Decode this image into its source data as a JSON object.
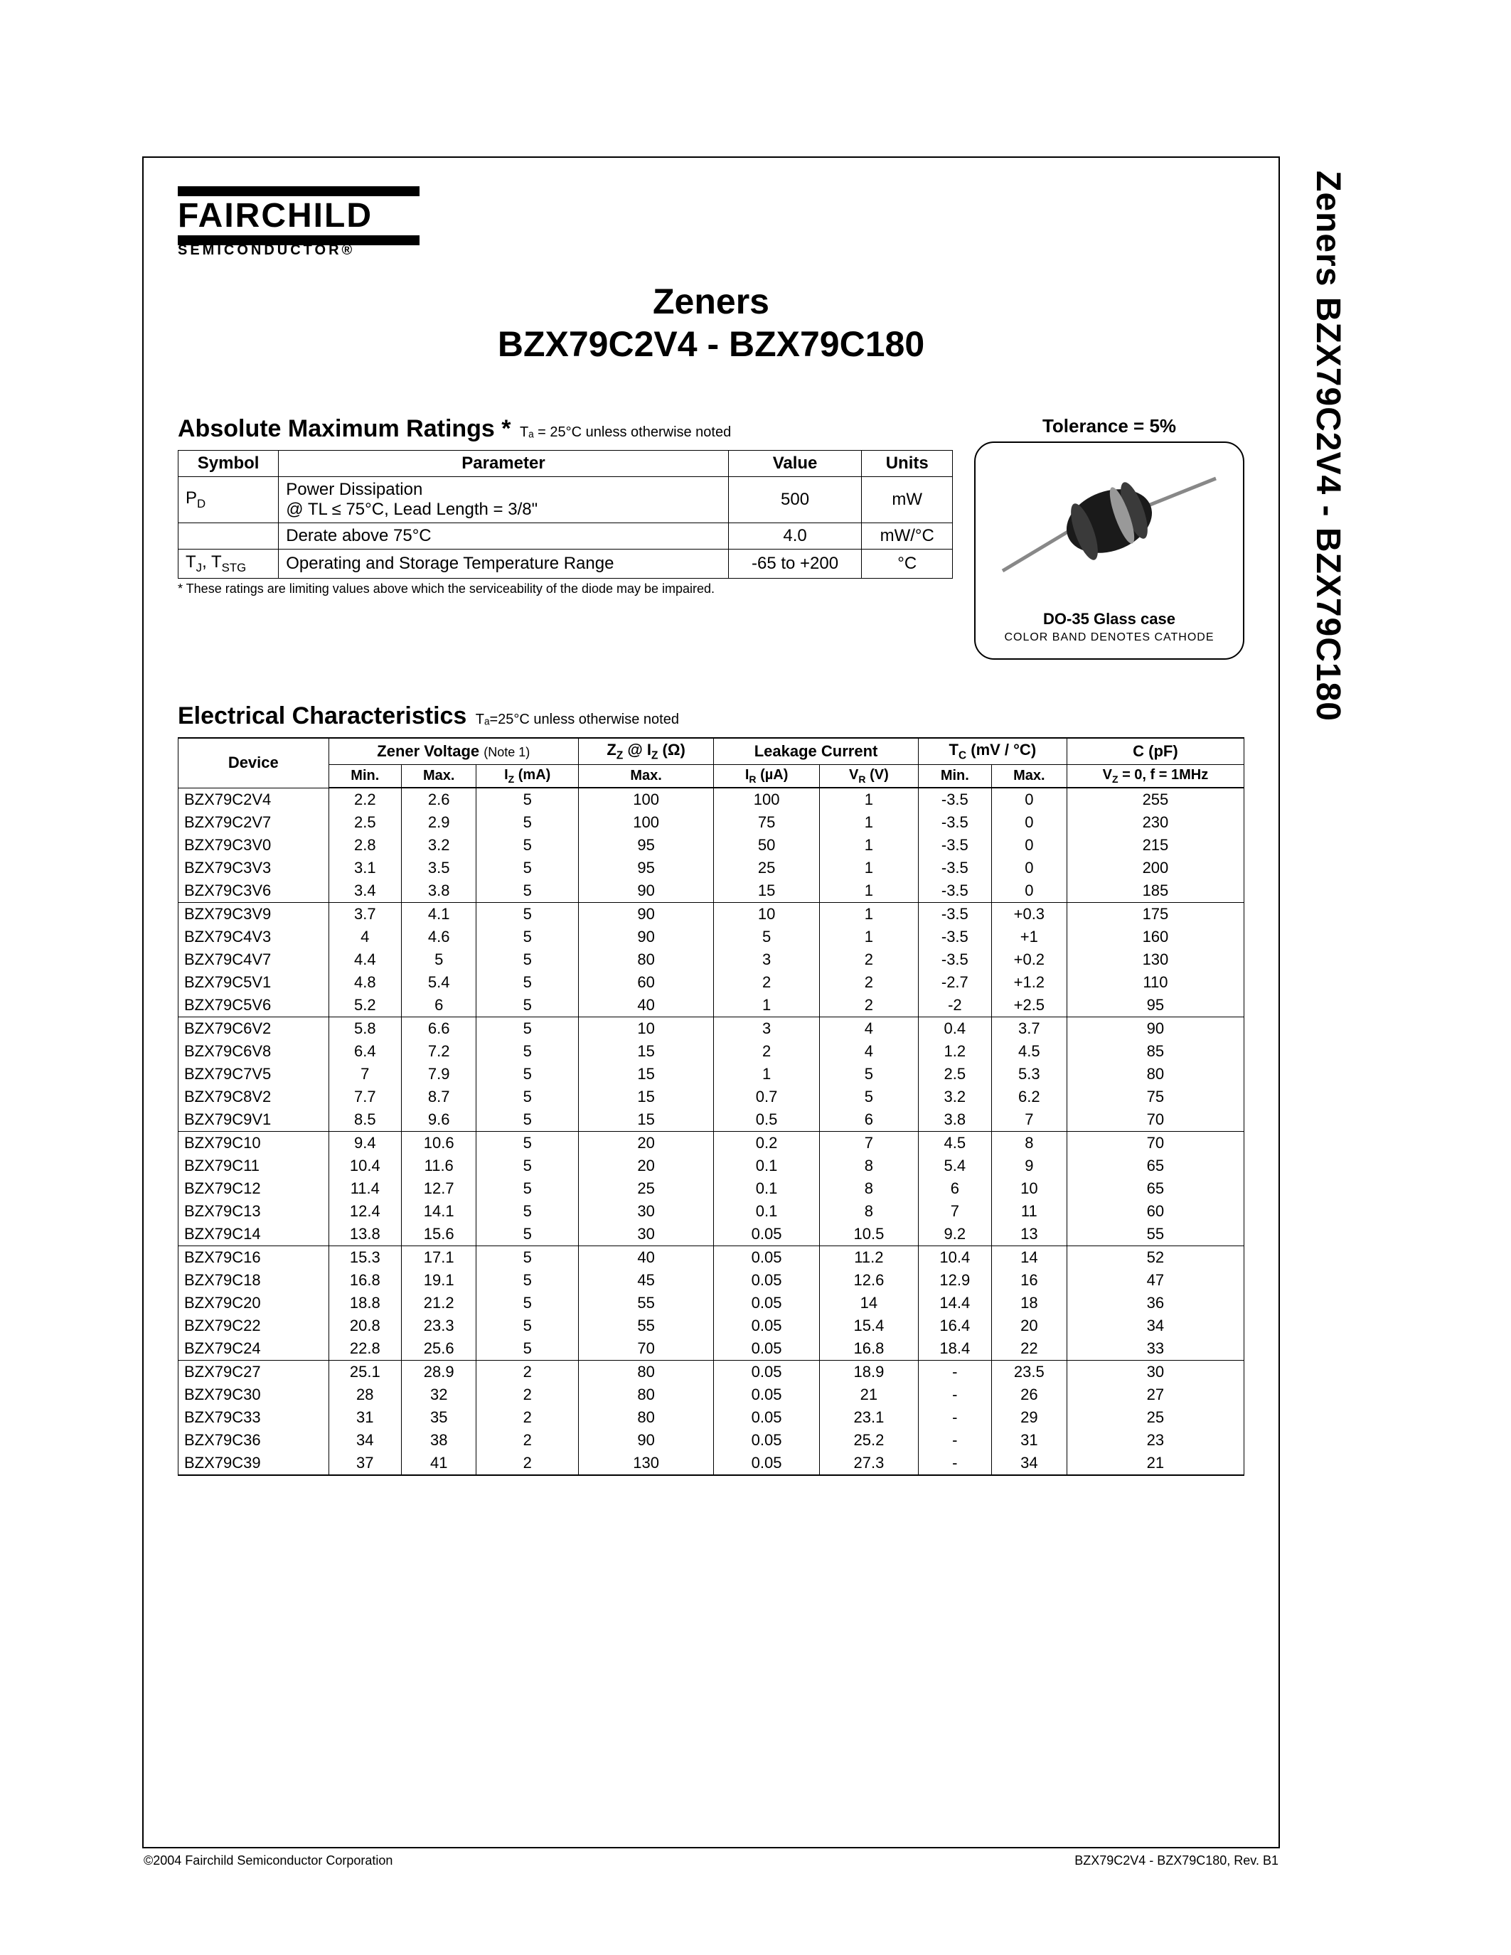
{
  "side_title": "Zeners BZX79C2V4 - BZX79C180",
  "logo": {
    "brand": "FAIRCHILD",
    "sub": "SEMICONDUCTOR®"
  },
  "main_title_line1": "Zeners",
  "main_title_line2": "BZX79C2V4 - BZX79C180",
  "ratings": {
    "heading": "Absolute Maximum Ratings *",
    "note": "Tₐ = 25°C unless otherwise noted",
    "columns": [
      "Symbol",
      "Parameter",
      "Value",
      "Units"
    ],
    "rows": [
      {
        "symbol": "P_D",
        "param": "Power Dissipation\n@ TL ≤ 75°C, Lead Length = 3/8\"",
        "value": "500",
        "units": "mW"
      },
      {
        "symbol": "",
        "param": "Derate above 75°C",
        "value": "4.0",
        "units": "mW/°C"
      },
      {
        "symbol": "T_J, T_STG",
        "param": "Operating and Storage Temperature Range",
        "value": "-65 to +200",
        "units": "°C"
      }
    ],
    "footnote": "* These ratings are limiting values above which the serviceability of the diode may be impaired."
  },
  "tolerance": "Tolerance = 5%",
  "package": {
    "label": "DO-35 Glass case",
    "sub": "COLOR BAND DENOTES CATHODE"
  },
  "elec": {
    "heading": "Electrical Characteristics",
    "note": "Tₐ=25°C unless otherwise noted",
    "top_headers": {
      "device": "Device",
      "zener": "Zener Voltage (Note 1)",
      "zz": "Z_Z @ I_Z   (Ω)",
      "leak": "Leakage Current",
      "tc": "T_C (mV / °C)",
      "c": "C (pF)"
    },
    "sub_headers": [
      "Min.",
      "Max.",
      "I_Z (mA)",
      "Max.",
      "I_R (µA)",
      "V_R (V)",
      "Min.",
      "Max.",
      "V_Z = 0, f = 1MHz"
    ],
    "groups": [
      [
        [
          "BZX79C2V4",
          "2.2",
          "2.6",
          "5",
          "100",
          "100",
          "1",
          "-3.5",
          "0",
          "255"
        ],
        [
          "BZX79C2V7",
          "2.5",
          "2.9",
          "5",
          "100",
          "75",
          "1",
          "-3.5",
          "0",
          "230"
        ],
        [
          "BZX79C3V0",
          "2.8",
          "3.2",
          "5",
          "95",
          "50",
          "1",
          "-3.5",
          "0",
          "215"
        ],
        [
          "BZX79C3V3",
          "3.1",
          "3.5",
          "5",
          "95",
          "25",
          "1",
          "-3.5",
          "0",
          "200"
        ],
        [
          "BZX79C3V6",
          "3.4",
          "3.8",
          "5",
          "90",
          "15",
          "1",
          "-3.5",
          "0",
          "185"
        ]
      ],
      [
        [
          "BZX79C3V9",
          "3.7",
          "4.1",
          "5",
          "90",
          "10",
          "1",
          "-3.5",
          "+0.3",
          "175"
        ],
        [
          "BZX79C4V3",
          "4",
          "4.6",
          "5",
          "90",
          "5",
          "1",
          "-3.5",
          "+1",
          "160"
        ],
        [
          "BZX79C4V7",
          "4.4",
          "5",
          "5",
          "80",
          "3",
          "2",
          "-3.5",
          "+0.2",
          "130"
        ],
        [
          "BZX79C5V1",
          "4.8",
          "5.4",
          "5",
          "60",
          "2",
          "2",
          "-2.7",
          "+1.2",
          "110"
        ],
        [
          "BZX79C5V6",
          "5.2",
          "6",
          "5",
          "40",
          "1",
          "2",
          "-2",
          "+2.5",
          "95"
        ]
      ],
      [
        [
          "BZX79C6V2",
          "5.8",
          "6.6",
          "5",
          "10",
          "3",
          "4",
          "0.4",
          "3.7",
          "90"
        ],
        [
          "BZX79C6V8",
          "6.4",
          "7.2",
          "5",
          "15",
          "2",
          "4",
          "1.2",
          "4.5",
          "85"
        ],
        [
          "BZX79C7V5",
          "7",
          "7.9",
          "5",
          "15",
          "1",
          "5",
          "2.5",
          "5.3",
          "80"
        ],
        [
          "BZX79C8V2",
          "7.7",
          "8.7",
          "5",
          "15",
          "0.7",
          "5",
          "3.2",
          "6.2",
          "75"
        ],
        [
          "BZX79C9V1",
          "8.5",
          "9.6",
          "5",
          "15",
          "0.5",
          "6",
          "3.8",
          "7",
          "70"
        ]
      ],
      [
        [
          "BZX79C10",
          "9.4",
          "10.6",
          "5",
          "20",
          "0.2",
          "7",
          "4.5",
          "8",
          "70"
        ],
        [
          "BZX79C11",
          "10.4",
          "11.6",
          "5",
          "20",
          "0.1",
          "8",
          "5.4",
          "9",
          "65"
        ],
        [
          "BZX79C12",
          "11.4",
          "12.7",
          "5",
          "25",
          "0.1",
          "8",
          "6",
          "10",
          "65"
        ],
        [
          "BZX79C13",
          "12.4",
          "14.1",
          "5",
          "30",
          "0.1",
          "8",
          "7",
          "11",
          "60"
        ],
        [
          "BZX79C14",
          "13.8",
          "15.6",
          "5",
          "30",
          "0.05",
          "10.5",
          "9.2",
          "13",
          "55"
        ]
      ],
      [
        [
          "BZX79C16",
          "15.3",
          "17.1",
          "5",
          "40",
          "0.05",
          "11.2",
          "10.4",
          "14",
          "52"
        ],
        [
          "BZX79C18",
          "16.8",
          "19.1",
          "5",
          "45",
          "0.05",
          "12.6",
          "12.9",
          "16",
          "47"
        ],
        [
          "BZX79C20",
          "18.8",
          "21.2",
          "5",
          "55",
          "0.05",
          "14",
          "14.4",
          "18",
          "36"
        ],
        [
          "BZX79C22",
          "20.8",
          "23.3",
          "5",
          "55",
          "0.05",
          "15.4",
          "16.4",
          "20",
          "34"
        ],
        [
          "BZX79C24",
          "22.8",
          "25.6",
          "5",
          "70",
          "0.05",
          "16.8",
          "18.4",
          "22",
          "33"
        ]
      ],
      [
        [
          "BZX79C27",
          "25.1",
          "28.9",
          "2",
          "80",
          "0.05",
          "18.9",
          "-",
          "23.5",
          "30"
        ],
        [
          "BZX79C30",
          "28",
          "32",
          "2",
          "80",
          "0.05",
          "21",
          "-",
          "26",
          "27"
        ],
        [
          "BZX79C33",
          "31",
          "35",
          "2",
          "80",
          "0.05",
          "23.1",
          "-",
          "29",
          "25"
        ],
        [
          "BZX79C36",
          "34",
          "38",
          "2",
          "90",
          "0.05",
          "25.2",
          "-",
          "31",
          "23"
        ],
        [
          "BZX79C39",
          "37",
          "41",
          "2",
          "130",
          "0.05",
          "27.3",
          "-",
          "34",
          "21"
        ]
      ]
    ]
  },
  "footer": {
    "left": "©2004 Fairchild Semiconductor Corporation",
    "right": "BZX79C2V4 - BZX79C180, Rev. B1"
  },
  "colors": {
    "border": "#000000",
    "bg": "#ffffff",
    "diode_body": "#2a2a2a",
    "diode_band": "#cfcfcf"
  }
}
